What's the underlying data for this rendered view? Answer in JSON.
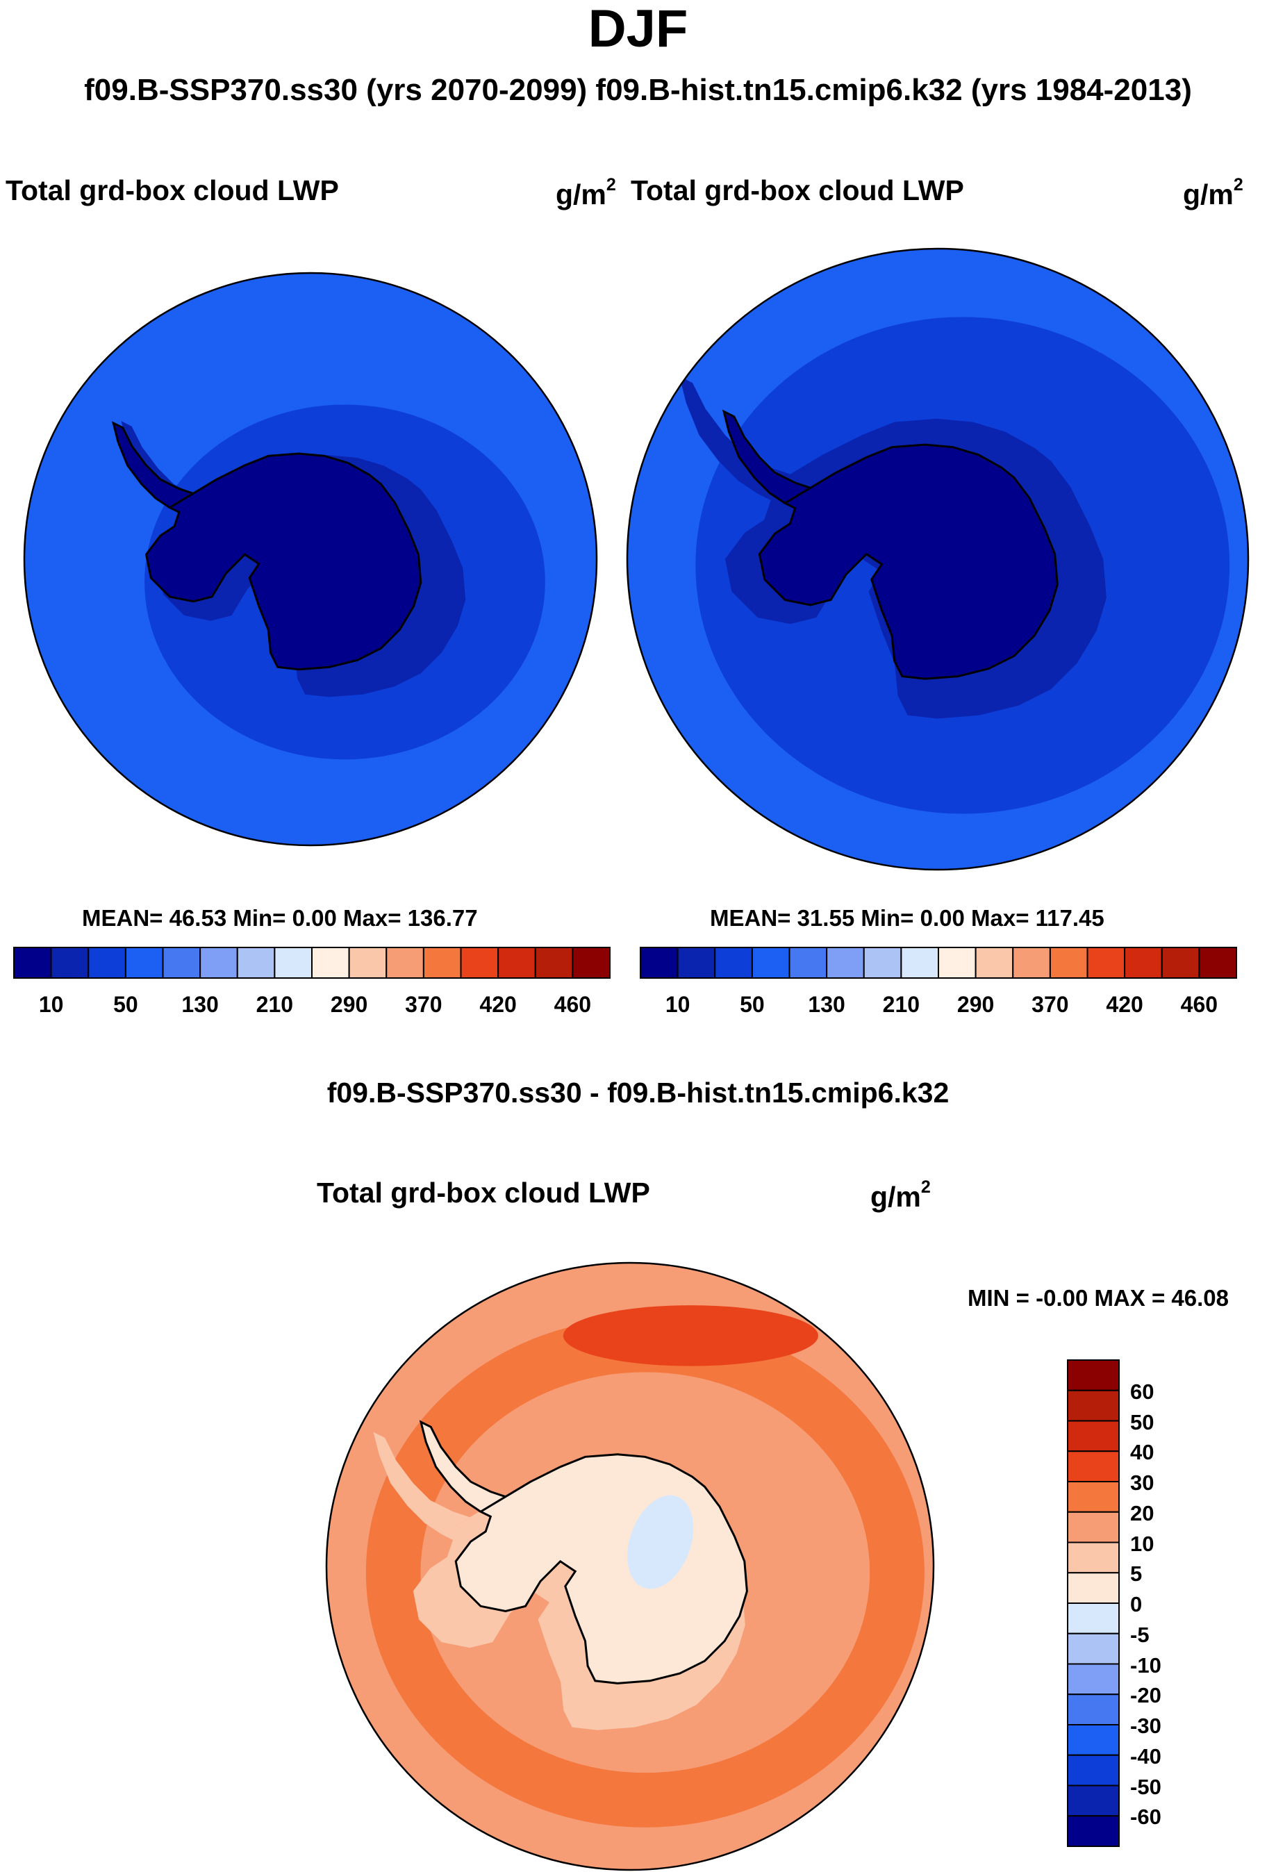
{
  "page": {
    "title": "DJF",
    "subtitle": "f09.B-SSP370.ss30 (yrs 2070-2099)  f09.B-hist.tn15.cmip6.k32 (yrs 1984-2013)"
  },
  "panels": [
    {
      "label": "Total grd-box cloud LWP",
      "units_base": "g/m",
      "units_exp": "2",
      "stats": "MEAN=  46.53  Min=    0.00  Max= 136.77"
    },
    {
      "label": "Total grd-box cloud LWP",
      "units_base": "g/m",
      "units_exp": "2",
      "stats": "MEAN=  31.55  Min=    0.00  Max= 117.45"
    }
  ],
  "colorbar": {
    "ticks": [
      "10",
      "50",
      "130",
      "210",
      "290",
      "370",
      "420",
      "460"
    ],
    "colors": [
      "#00008b",
      "#0a24b0",
      "#0d3fd8",
      "#1c5ff3",
      "#4678f2",
      "#7e9ff5",
      "#acc4f5",
      "#d8e8fc",
      "#fff0e3",
      "#fbc7aa",
      "#f69d76",
      "#f4773e",
      "#e8431a",
      "#d22a0e",
      "#b51e08",
      "#8b0000"
    ]
  },
  "difference": {
    "title": "f09.B-SSP370.ss30 - f09.B-hist.tn15.cmip6.k32",
    "label": "Total grd-box cloud LWP",
    "units_base": "g/m",
    "units_exp": "2",
    "stats": "MIN =  -0.00 MAX =  46.08",
    "colorbar_labels": [
      "60",
      "50",
      "40",
      "30",
      "20",
      "10",
      "5",
      "0",
      "-5",
      "-10",
      "-20",
      "-30",
      "-40",
      "-50",
      "-60"
    ],
    "colorbar_colors": [
      "#8b0000",
      "#b51e08",
      "#d22a0e",
      "#e8431a",
      "#f4773e",
      "#f69d76",
      "#fbc7aa",
      "#fde8d8",
      "#d8e8fc",
      "#acc4f5",
      "#7e9ff5",
      "#4678f2",
      "#1c5ff3",
      "#0d3fd8",
      "#0a24b0",
      "#00008b"
    ]
  },
  "colors": {
    "ocean_blue": "#1c5ff3",
    "ocean_mid": "#0d3fd8",
    "ocean_dark": "#0a24b0",
    "land_dark": "#00008b",
    "diff_far": "#f69d76",
    "diff_mid": "#f4773e",
    "diff_hot": "#e8431a",
    "diff_land": "#fde8d8",
    "diff_light": "#fbc7aa",
    "diff_neg": "#d8e8fc"
  }
}
